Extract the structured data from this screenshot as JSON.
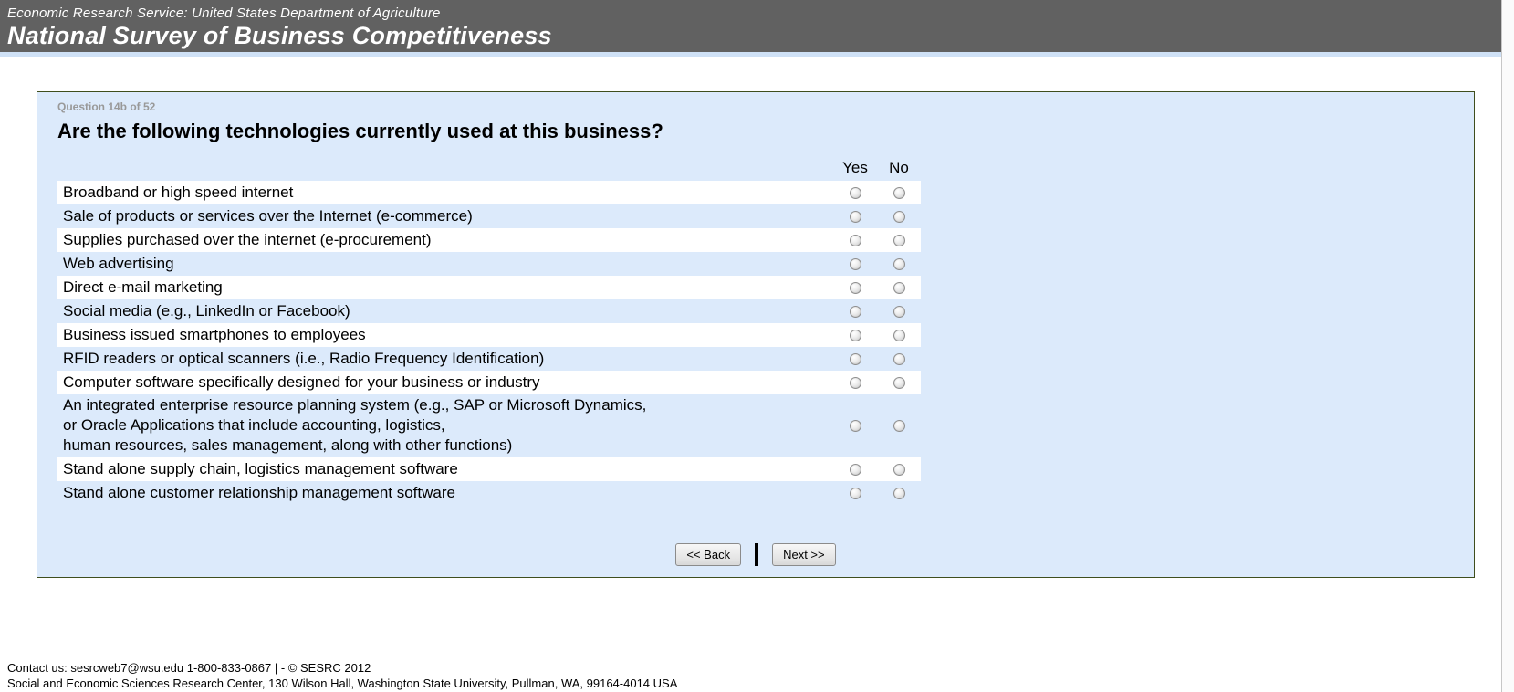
{
  "header": {
    "agency_line": "Economic Research Service: United States Department of Agriculture",
    "survey_title": "National Survey of Business Competitiveness"
  },
  "question": {
    "progress_label": "Question 14b of 52",
    "title": "Are the following technologies currently used at this business?",
    "columns": {
      "yes": "Yes",
      "no": "No"
    },
    "items": [
      {
        "label": "Broadband or high speed internet"
      },
      {
        "label": "Sale of products or services over the Internet (e-commerce)"
      },
      {
        "label": "Supplies purchased over the internet (e-procurement)"
      },
      {
        "label": "Web advertising"
      },
      {
        "label": "Direct e-mail marketing"
      },
      {
        "label": "Social media (e.g., LinkedIn or Facebook)"
      },
      {
        "label": "Business issued smartphones to employees"
      },
      {
        "label": "RFID readers or optical scanners (i.e., Radio Frequency Identification)"
      },
      {
        "label": "Computer software specifically designed for your business or industry"
      },
      {
        "label": "An integrated enterprise resource planning system (e.g., SAP or Microsoft Dynamics,\nor Oracle Applications that include accounting, logistics,\nhuman resources, sales management, along with other functions)"
      },
      {
        "label": "Stand alone supply chain, logistics management software"
      },
      {
        "label": "Stand alone customer relationship management software"
      }
    ],
    "radio_state": "all-unselected"
  },
  "buttons": {
    "back": "<< Back",
    "next": "Next >>",
    "separator": "|"
  },
  "footer": {
    "line1": "Contact us: sesrcweb7@wsu.edu 1-800-833-0867 | - © SESRC 2012",
    "line2": "Social and Economic Sciences Research Center, 130 Wilson Hall, Washington State University, Pullman, WA, 99164-4014 USA"
  },
  "colors": {
    "header_bg": "#616161",
    "header_text": "#ffffff",
    "header_strip": "#cfe1f6",
    "box_bg": "#dceafb",
    "box_border": "#3f4e1d",
    "row_alt_white": "#ffffff",
    "progress_text": "#999999"
  }
}
